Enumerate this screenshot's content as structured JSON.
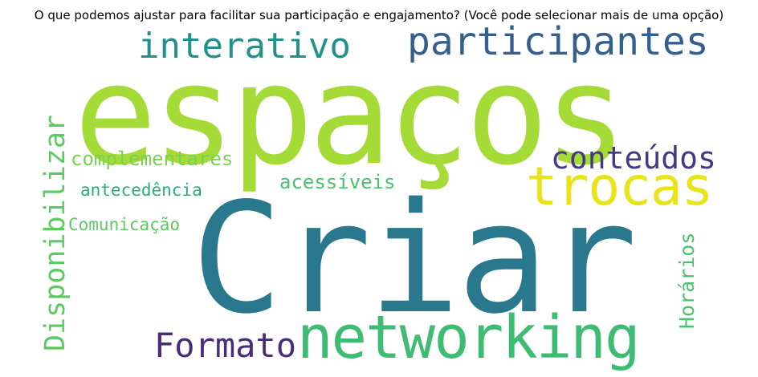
{
  "title": "O que podemos ajustar para facilitar sua participação e engajamento?  (Você pode selecionar mais de uma opção)",
  "words": [
    {
      "key": "espacos",
      "text": "espaços",
      "color": "#a5db36"
    },
    {
      "key": "criar",
      "text": "Criar",
      "color": "#2a788e"
    },
    {
      "key": "networking",
      "text": "networking",
      "color": "#3fbc73"
    },
    {
      "key": "participantes",
      "text": "participantes",
      "color": "#355f8d"
    },
    {
      "key": "trocas",
      "text": "trocas",
      "color": "#e8e419"
    },
    {
      "key": "interativo",
      "text": "interativo",
      "color": "#21918c"
    },
    {
      "key": "disponibilizar",
      "text": "Disponibilizar",
      "color": "#5ec962"
    },
    {
      "key": "conteudos",
      "text": "conteúdos",
      "color": "#443983"
    },
    {
      "key": "formato",
      "text": "Formato",
      "color": "#472d7b"
    },
    {
      "key": "complementares",
      "text": "complementares",
      "color": "#7ad151"
    },
    {
      "key": "acessiveis",
      "text": "acessíveis",
      "color": "#4ac16d"
    },
    {
      "key": "antecedencia",
      "text": "antecedência",
      "color": "#28ae80"
    },
    {
      "key": "comunicacao",
      "text": "Comunicação",
      "color": "#5ec962"
    },
    {
      "key": "horarios",
      "text": "Horários",
      "color": "#4ac16d"
    }
  ]
}
